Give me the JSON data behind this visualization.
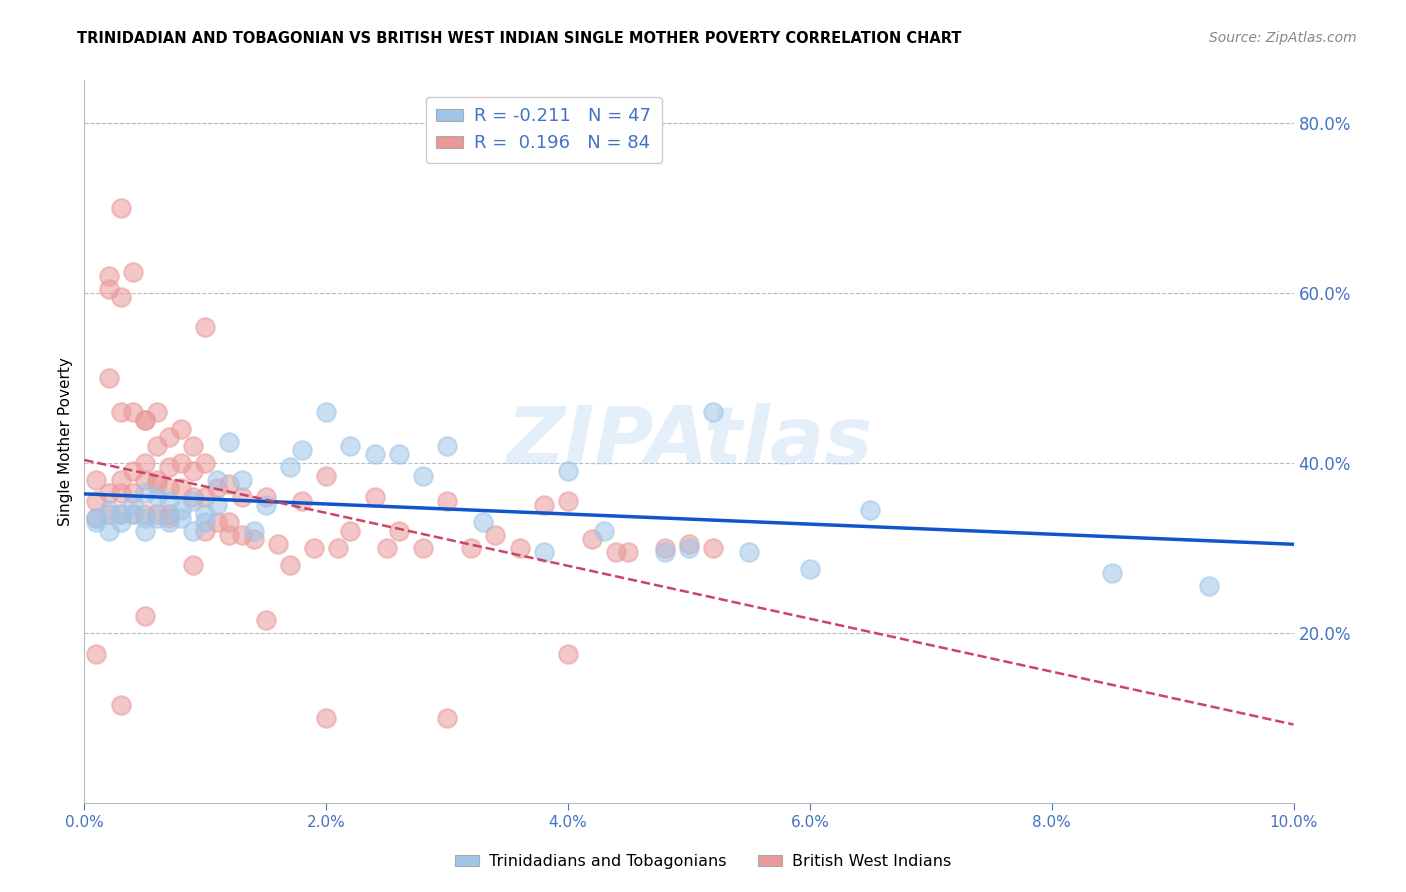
{
  "title": "TRINIDADIAN AND TOBAGONIAN VS BRITISH WEST INDIAN SINGLE MOTHER POVERTY CORRELATION CHART",
  "source": "Source: ZipAtlas.com",
  "ylabel": "Single Mother Poverty",
  "watermark": "ZIPAtlas",
  "xlim": [
    0.0,
    0.1
  ],
  "ylim": [
    0.0,
    0.85
  ],
  "xticks": [
    0.0,
    0.02,
    0.04,
    0.06,
    0.08,
    0.1
  ],
  "xtick_labels": [
    "0.0%",
    "2.0%",
    "4.0%",
    "6.0%",
    "8.0%",
    "10.0%"
  ],
  "yticks_right": [
    0.2,
    0.4,
    0.6,
    0.8
  ],
  "ytick_labels_right": [
    "20.0%",
    "40.0%",
    "60.0%",
    "80.0%"
  ],
  "blue_R": -0.211,
  "blue_N": 47,
  "pink_R": 0.196,
  "pink_N": 84,
  "legend_label_blue": "Trinidadians and Tobagonians",
  "legend_label_pink": "British West Indians",
  "blue_color": "#9fc5e8",
  "pink_color": "#ea9999",
  "blue_line_color": "#1155cc",
  "pink_line_color": "#cc4466",
  "axis_color": "#4472c4",
  "grid_color": "#bbbbbb",
  "background_color": "#ffffff",
  "blue_scatter_x": [
    0.001,
    0.001,
    0.002,
    0.002,
    0.003,
    0.003,
    0.004,
    0.004,
    0.005,
    0.005,
    0.005,
    0.006,
    0.006,
    0.007,
    0.007,
    0.008,
    0.008,
    0.009,
    0.009,
    0.01,
    0.01,
    0.011,
    0.011,
    0.012,
    0.013,
    0.014,
    0.015,
    0.017,
    0.018,
    0.02,
    0.022,
    0.024,
    0.026,
    0.028,
    0.03,
    0.033,
    0.038,
    0.04,
    0.043,
    0.048,
    0.05,
    0.052,
    0.055,
    0.06,
    0.065,
    0.085,
    0.093
  ],
  "blue_scatter_y": [
    0.335,
    0.33,
    0.32,
    0.345,
    0.33,
    0.34,
    0.34,
    0.35,
    0.32,
    0.335,
    0.365,
    0.335,
    0.36,
    0.33,
    0.355,
    0.345,
    0.335,
    0.32,
    0.355,
    0.34,
    0.33,
    0.38,
    0.35,
    0.425,
    0.38,
    0.32,
    0.35,
    0.395,
    0.415,
    0.46,
    0.42,
    0.41,
    0.41,
    0.385,
    0.42,
    0.33,
    0.295,
    0.39,
    0.32,
    0.295,
    0.3,
    0.46,
    0.295,
    0.275,
    0.345,
    0.27,
    0.255
  ],
  "pink_scatter_x": [
    0.001,
    0.001,
    0.001,
    0.002,
    0.002,
    0.002,
    0.003,
    0.003,
    0.003,
    0.003,
    0.004,
    0.004,
    0.004,
    0.004,
    0.005,
    0.005,
    0.005,
    0.005,
    0.006,
    0.006,
    0.006,
    0.006,
    0.007,
    0.007,
    0.007,
    0.007,
    0.008,
    0.008,
    0.008,
    0.009,
    0.009,
    0.009,
    0.01,
    0.01,
    0.01,
    0.011,
    0.011,
    0.012,
    0.012,
    0.013,
    0.013,
    0.014,
    0.015,
    0.016,
    0.017,
    0.018,
    0.019,
    0.02,
    0.021,
    0.022,
    0.024,
    0.025,
    0.026,
    0.028,
    0.03,
    0.032,
    0.034,
    0.036,
    0.038,
    0.04,
    0.042,
    0.044,
    0.045,
    0.048,
    0.05,
    0.052,
    0.003,
    0.004,
    0.002,
    0.002,
    0.003,
    0.005,
    0.006,
    0.007,
    0.009,
    0.01,
    0.012,
    0.015,
    0.02,
    0.03,
    0.001,
    0.003,
    0.005,
    0.04
  ],
  "pink_scatter_y": [
    0.335,
    0.355,
    0.38,
    0.34,
    0.365,
    0.5,
    0.34,
    0.365,
    0.38,
    0.46,
    0.34,
    0.365,
    0.39,
    0.46,
    0.34,
    0.38,
    0.4,
    0.45,
    0.34,
    0.38,
    0.42,
    0.46,
    0.34,
    0.37,
    0.395,
    0.43,
    0.37,
    0.4,
    0.44,
    0.36,
    0.39,
    0.42,
    0.36,
    0.4,
    0.56,
    0.33,
    0.37,
    0.33,
    0.375,
    0.315,
    0.36,
    0.31,
    0.36,
    0.305,
    0.28,
    0.355,
    0.3,
    0.385,
    0.3,
    0.32,
    0.36,
    0.3,
    0.32,
    0.3,
    0.355,
    0.3,
    0.315,
    0.3,
    0.35,
    0.355,
    0.31,
    0.295,
    0.295,
    0.3,
    0.305,
    0.3,
    0.7,
    0.625,
    0.62,
    0.605,
    0.595,
    0.45,
    0.375,
    0.335,
    0.28,
    0.32,
    0.315,
    0.215,
    0.1,
    0.1,
    0.175,
    0.115,
    0.22,
    0.175
  ]
}
